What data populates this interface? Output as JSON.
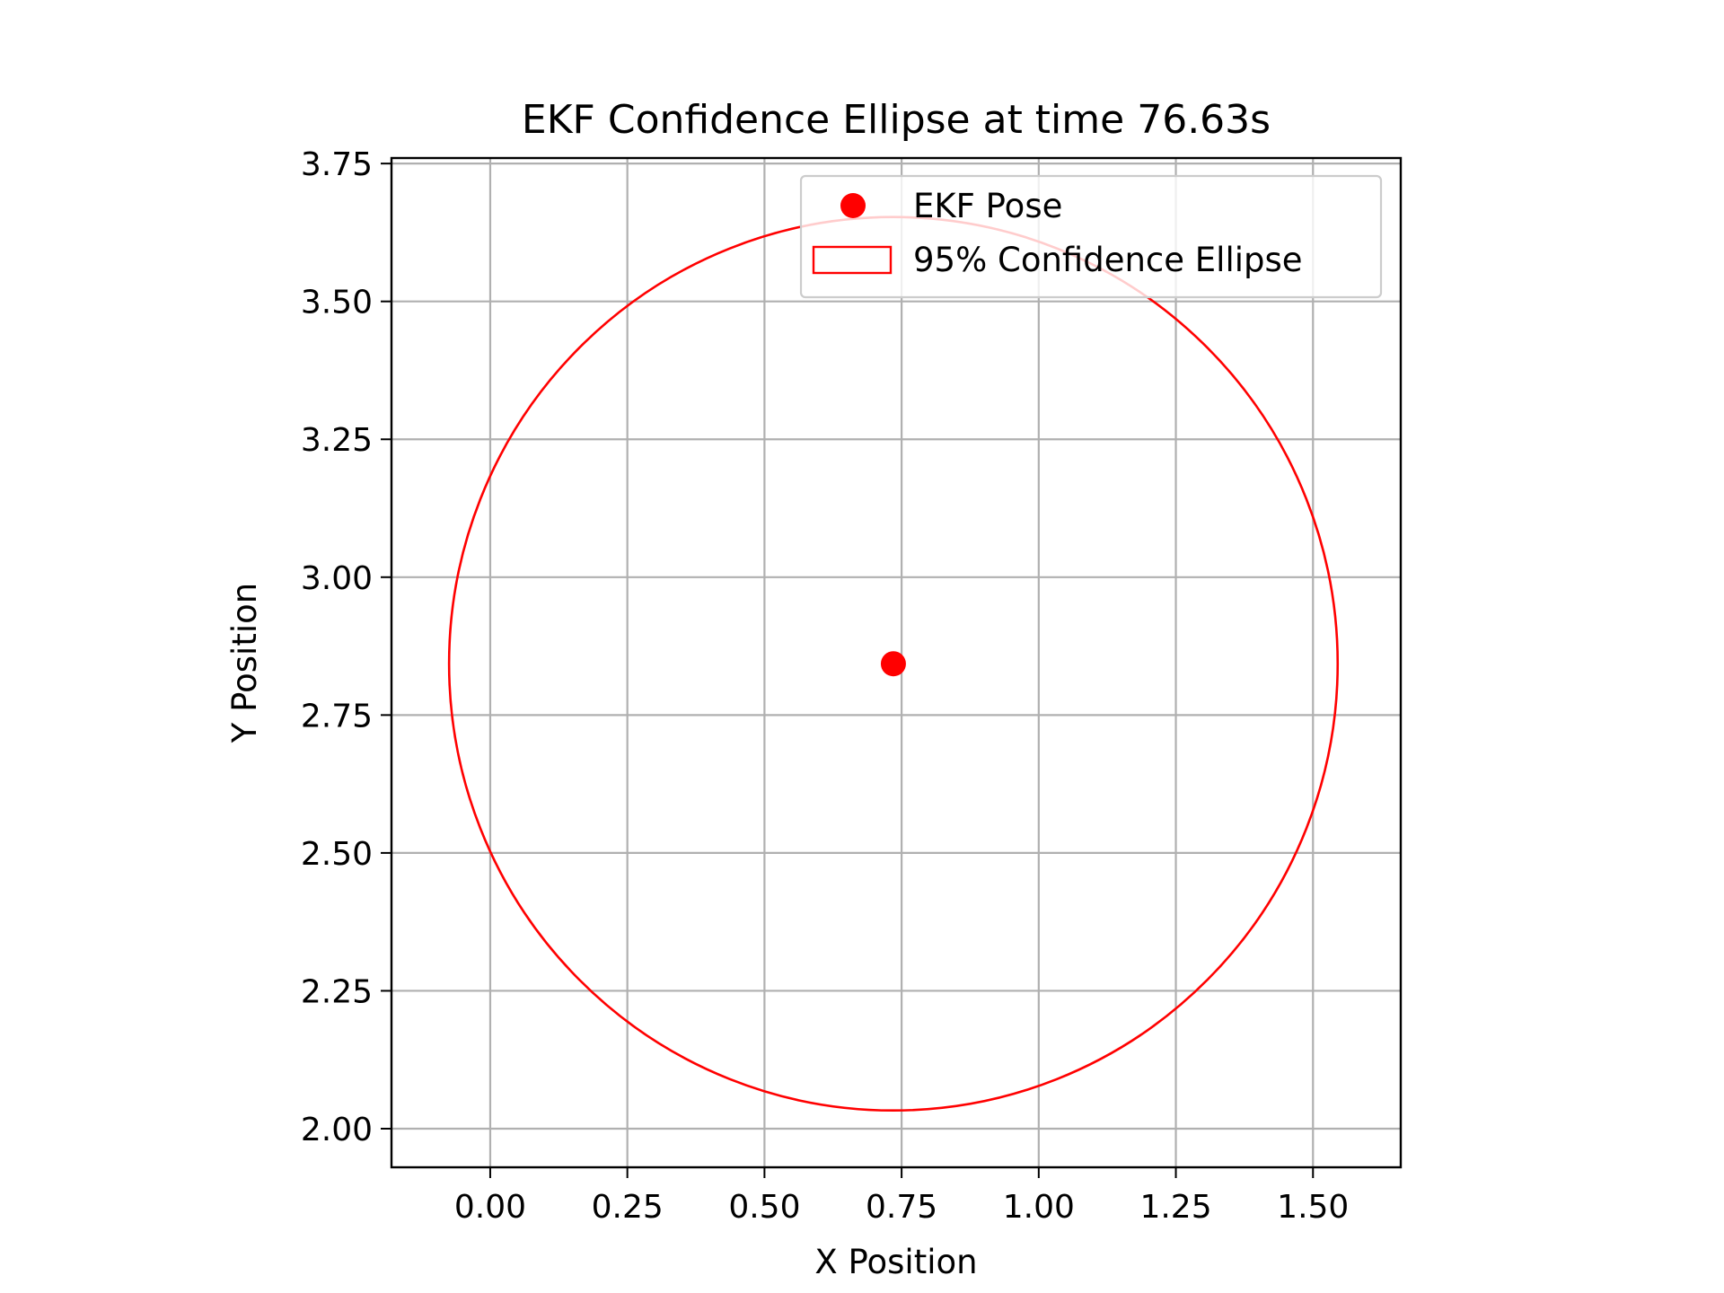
{
  "chart_data": {
    "type": "scatter",
    "title": "EKF Confidence Ellipse at time 76.63s",
    "xlabel": "X Position",
    "ylabel": "Y Position",
    "xlim": [
      -0.18,
      1.66
    ],
    "ylim": [
      1.93,
      3.76
    ],
    "grid": true,
    "legend_position": "top-right",
    "x_ticks": [
      0.0,
      0.25,
      0.5,
      0.75,
      1.0,
      1.25,
      1.5
    ],
    "x_tick_labels": [
      "0.00",
      "0.25",
      "0.50",
      "0.75",
      "1.00",
      "1.25",
      "1.50"
    ],
    "y_ticks": [
      2.0,
      2.25,
      2.5,
      2.75,
      3.0,
      3.25,
      3.5,
      3.75
    ],
    "y_tick_labels": [
      "2.00",
      "2.25",
      "2.50",
      "2.75",
      "3.00",
      "3.25",
      "3.50",
      "3.75"
    ],
    "series": [
      {
        "name": "EKF Pose",
        "kind": "point",
        "x": 0.735,
        "y": 2.843,
        "color": "#ff0000"
      },
      {
        "name": "95% Confidence Ellipse",
        "kind": "ellipse",
        "center": [
          0.735,
          2.843
        ],
        "width": 1.62,
        "height": 1.62,
        "angle": 0,
        "color": "#ff0000"
      }
    ]
  }
}
